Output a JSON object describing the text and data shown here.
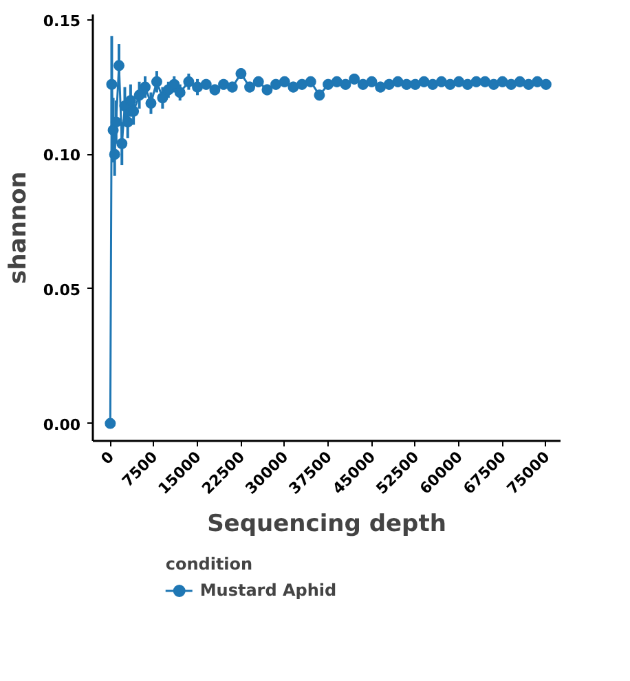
{
  "chart_data": {
    "type": "line",
    "xlabel": "Sequencing depth",
    "ylabel": "shannon",
    "legend_title": "condition",
    "x": [
      0,
      250,
      500,
      750,
      1000,
      1500,
      2000,
      2500,
      3000,
      3500,
      4000,
      5000,
      6000,
      7000,
      8000,
      9000,
      10000,
      11000,
      12000,
      13500,
      15000,
      16500,
      18000,
      19500,
      21000,
      22500,
      24000,
      25500,
      27000,
      28500,
      30000,
      31500,
      33000,
      34500,
      36000,
      37500,
      39000,
      40500,
      42000,
      43500,
      45000,
      46500,
      48000,
      49500,
      51000,
      52500,
      54000,
      55500,
      57000,
      58500,
      60000,
      61500,
      63000,
      64500,
      66000,
      67500,
      69000,
      70500,
      72000,
      73500,
      75000
    ],
    "series": [
      {
        "name": "Mustard Aphid",
        "color": "#1f77b4",
        "values": [
          0,
          0.126,
          0.109,
          0.1,
          0.112,
          0.133,
          0.104,
          0.118,
          0.112,
          0.12,
          0.116,
          0.122,
          0.125,
          0.119,
          0.127,
          0.121,
          0.124,
          0.126,
          0.123,
          0.127,
          0.125,
          0.126,
          0.124,
          0.126,
          0.125,
          0.13,
          0.125,
          0.127,
          0.124,
          0.126,
          0.127,
          0.125,
          0.126,
          0.127,
          0.122,
          0.126,
          0.127,
          0.126,
          0.128,
          0.126,
          0.127,
          0.125,
          0.126,
          0.127,
          0.126,
          0.126,
          0.127,
          0.126,
          0.127,
          0.126,
          0.127,
          0.126,
          0.127,
          0.127,
          0.126,
          0.127,
          0.126,
          0.127,
          0.126,
          0.127,
          0.126
        ],
        "errors": [
          null,
          0.018,
          0.012,
          0.008,
          0.008,
          0.008,
          0.008,
          0.007,
          0.006,
          0.006,
          0.005,
          0.005,
          0.004,
          0.004,
          0.004,
          0.004,
          0.003,
          0.003,
          0.003,
          0.003,
          0.003,
          0.002,
          0.002,
          0.002,
          0.002,
          0.002,
          0.002,
          0.002,
          0.002,
          0.002,
          0.002,
          0.002,
          0.002,
          0.002,
          0.002,
          0.002,
          0.002,
          0.002,
          0.002,
          0.002,
          0.002,
          0.002,
          0.002,
          0.002,
          0.002,
          0.002,
          0.002,
          0.002,
          0.002,
          0.002,
          0.002,
          0.002,
          0.002,
          0.002,
          0.002,
          0.002,
          0.002,
          0.002,
          0.002,
          0.002,
          0.002
        ]
      }
    ],
    "xlim": [
      -3000,
      77500
    ],
    "ylim": [
      -0.0065,
      0.152
    ],
    "xticks": [
      0,
      7500,
      15000,
      22500,
      30000,
      37500,
      45000,
      52500,
      60000,
      67500,
      75000
    ],
    "yticks": [
      {
        "value": 0,
        "label": "0.00"
      },
      0.05,
      {
        "value": 0.1,
        "label": "0.10"
      },
      0.15
    ],
    "grid": false,
    "legend": "bottom",
    "marker": "circle",
    "line_style": "solid"
  }
}
